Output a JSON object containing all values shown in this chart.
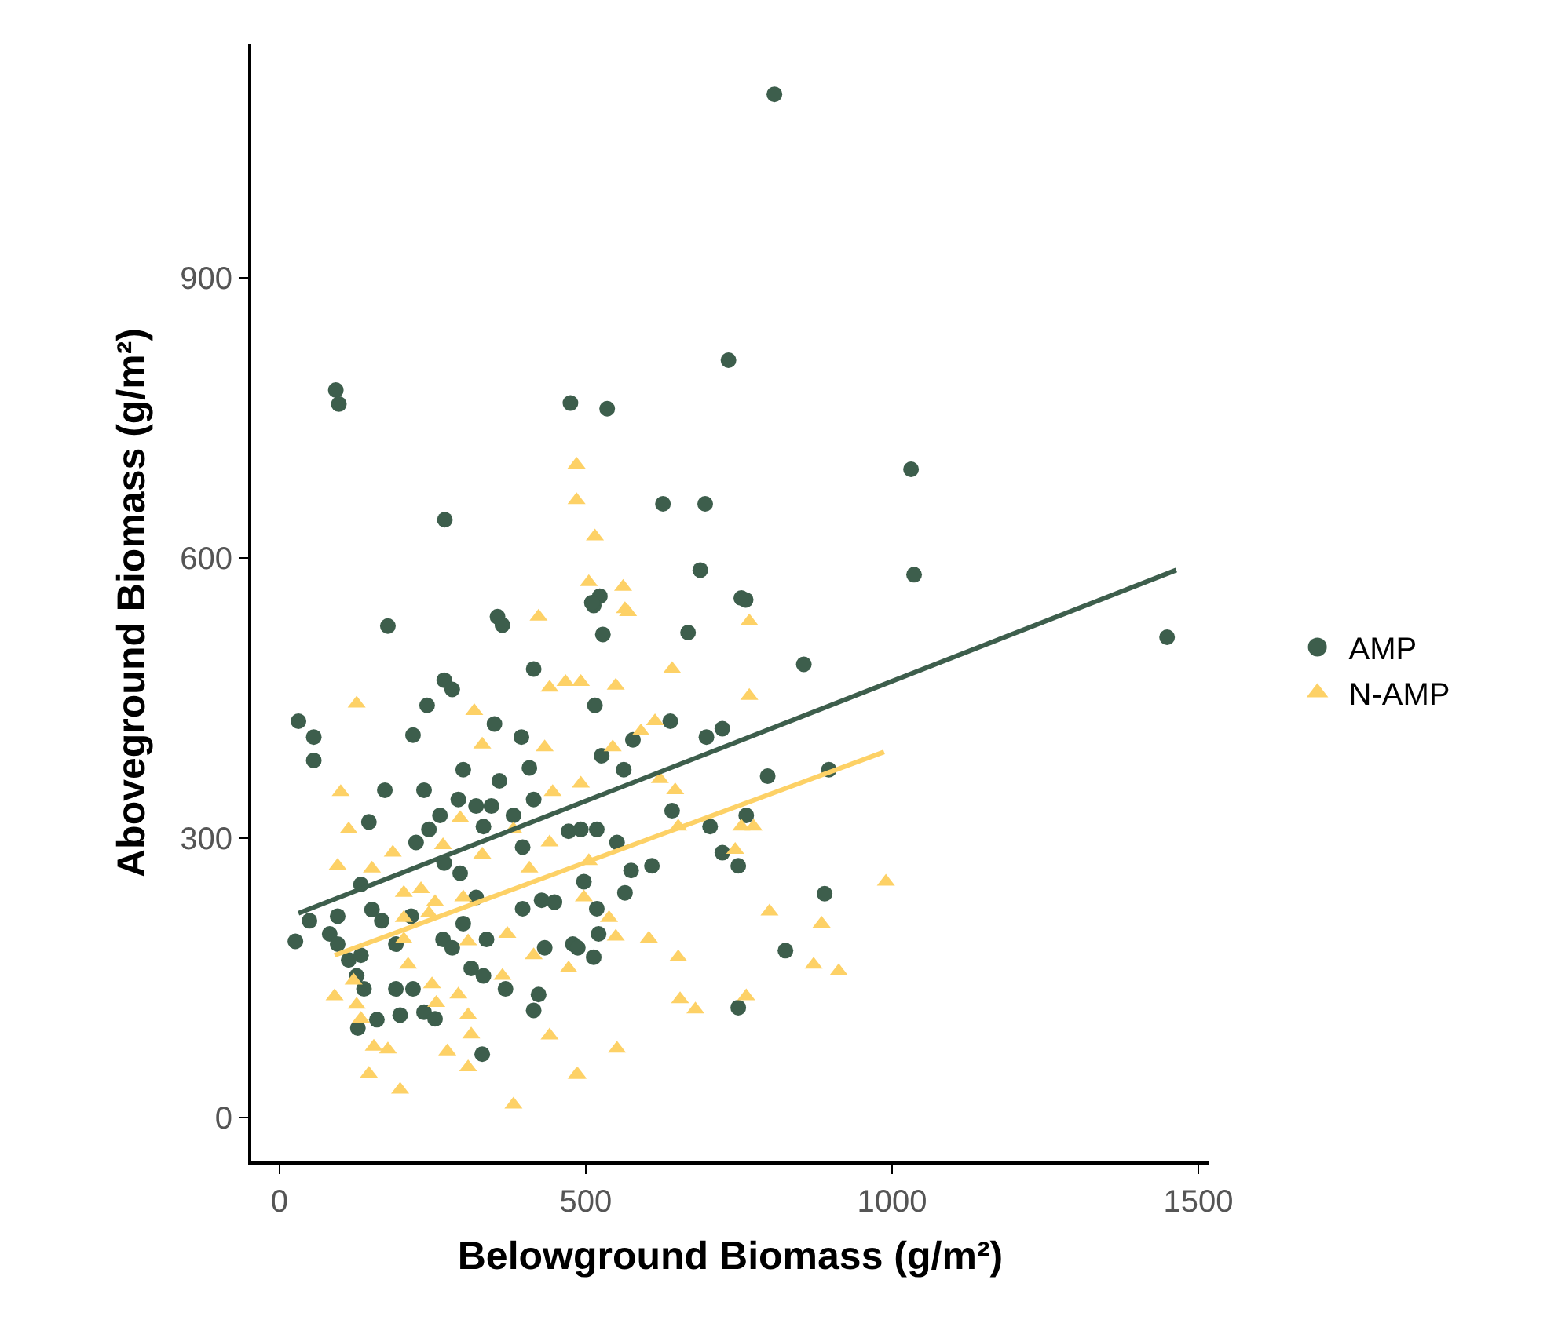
{
  "chart_data": {
    "type": "scatter",
    "xlabel": "Belowground Biomass (g/m²)",
    "ylabel": "Aboveground Biomass (g/m²)",
    "xlim": [
      -46,
      1518
    ],
    "ylim": [
      -47,
      1151
    ],
    "xticks": [
      0,
      500,
      1000,
      1500
    ],
    "yticks": [
      0,
      300,
      600,
      900
    ],
    "legend": "right",
    "series": [
      {
        "name": "AMP",
        "color": "#3d5e4c",
        "marker": "circle",
        "x": [
          808,
          92,
          97,
          475,
          535,
          733,
          1031,
          270,
          626,
          695,
          687,
          761,
          1036,
          523,
          513,
          356,
          1449,
          177,
          364,
          415,
          269,
          282,
          241,
          31,
          56,
          56,
          218,
          351,
          395,
          300,
          359,
          408,
          172,
          236,
          146,
          262,
          292,
          321,
          346,
          382,
          415,
          244,
          223,
          333,
          397,
          472,
          269,
          295,
          133,
          151,
          95,
          49,
          26,
          82,
          95,
          167,
          215,
          113,
          133,
          190,
          267,
          282,
          300,
          321,
          338,
          397,
          428,
          449,
          479,
          433,
          313,
          333,
          369,
          126,
          138,
          190,
          218,
          236,
          254,
          128,
          159,
          197,
          415,
          423,
          331,
          510,
          754,
          528,
          667,
          856,
          515,
          638,
          697,
          723,
          526,
          562,
          577,
          797,
          897,
          641,
          492,
          518,
          551,
          703,
          762,
          723,
          749,
          574,
          608,
          564,
          497,
          518,
          890,
          521,
          487,
          513,
          826,
          749
        ],
        "values": [
          1097,
          780,
          765,
          766,
          760,
          812,
          695,
          641,
          658,
          658,
          587,
          555,
          582,
          559,
          549,
          537,
          515,
          527,
          528,
          481,
          469,
          459,
          442,
          425,
          408,
          383,
          410,
          422,
          408,
          373,
          361,
          375,
          351,
          351,
          317,
          324,
          341,
          334,
          334,
          324,
          341,
          309,
          295,
          312,
          290,
          307,
          273,
          262,
          250,
          223,
          216,
          211,
          189,
          197,
          186,
          211,
          216,
          169,
          174,
          186,
          191,
          182,
          208,
          236,
          191,
          224,
          233,
          231,
          186,
          182,
          160,
          152,
          138,
          152,
          138,
          138,
          138,
          113,
          106,
          96,
          105,
          110,
          115,
          132,
          68,
          552,
          557,
          518,
          520,
          486,
          442,
          425,
          408,
          417,
          388,
          373,
          405,
          366,
          373,
          329,
          309,
          309,
          295,
          312,
          324,
          284,
          270,
          265,
          270,
          241,
          253,
          224,
          240,
          197,
          182,
          172,
          179,
          118
        ]
      },
      {
        "name": "N-AMP",
        "color": "#fdd166",
        "marker": "triangle",
        "x": [
          485,
          485,
          515,
          505,
          561,
          569,
          423,
          126,
          318,
          467,
          441,
          331,
          433,
          100,
          113,
          95,
          151,
          185,
          267,
          295,
          331,
          382,
          446,
          441,
          408,
          203,
          231,
          254,
          300,
          203,
          244,
          203,
          308,
          372,
          415,
          472,
          121,
          90,
          210,
          249,
          292,
          364,
          126,
          133,
          256,
          308,
          313,
          441,
          154,
          177,
          274,
          308,
          146,
          197,
          382,
          485,
          564,
          767,
          641,
          549,
          492,
          767,
          613,
          590,
          544,
          621,
          646,
          492,
          651,
          754,
          774,
          744,
          505,
          497,
          990,
          538,
          549,
          603,
          800,
          885,
          651,
          872,
          913,
          654,
          679,
          762,
          551,
          487
        ],
        "values": [
          700,
          662,
          623,
          574,
          569,
          542,
          537,
          444,
          436,
          467,
          461,
          400,
          397,
          349,
          309,
          270,
          267,
          284,
          292,
          321,
          282,
          309,
          349,
          295,
          267,
          241,
          245,
          231,
          236,
          214,
          219,
          191,
          189,
          197,
          174,
          160,
          147,
          130,
          164,
          143,
          132,
          152,
          121,
          106,
          123,
          110,
          89,
          88,
          76,
          73,
          71,
          54,
          47,
          30,
          14,
          46,
          545,
          532,
          481,
          463,
          467,
          452,
          425,
          414,
          397,
          363,
          351,
          358,
          312,
          312,
          312,
          287,
          275,
          236,
          253,
          214,
          194,
          192,
          221,
          208,
          172,
          164,
          157,
          127,
          116,
          130,
          74,
          46
        ]
      },
      {
        "type": "line",
        "color": "#3d5e4c",
        "x": [
          31,
          1464
        ],
        "values": [
          219,
          587
        ]
      },
      {
        "type": "line",
        "color": "#fdd166",
        "x": [
          90,
          987
        ],
        "values": [
          174,
          392
        ]
      }
    ]
  }
}
